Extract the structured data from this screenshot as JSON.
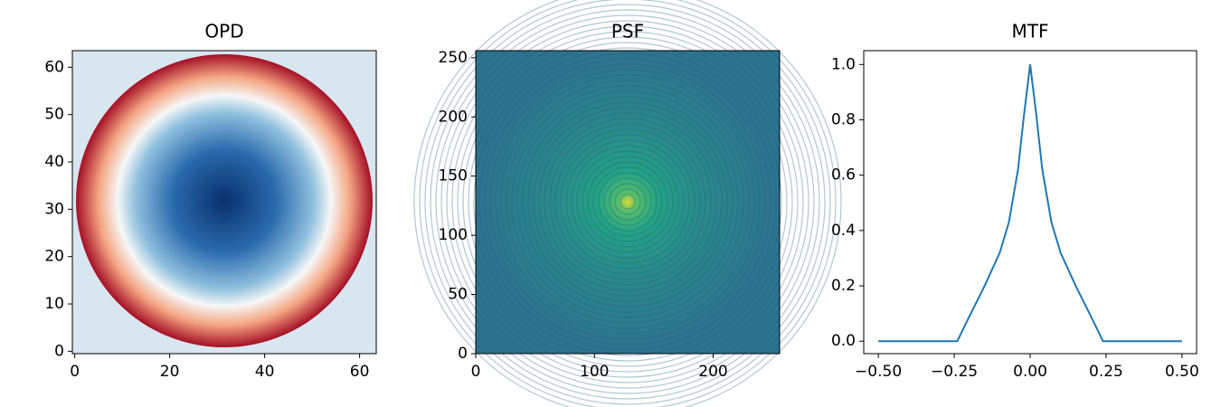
{
  "chart_data": [
    {
      "type": "image",
      "title": "OPD",
      "xlim": [
        -0.5,
        63.5
      ],
      "ylim": [
        -0.5,
        63.5
      ],
      "xticks": [
        0,
        20,
        40,
        60
      ],
      "yticks": [
        0,
        10,
        20,
        30,
        40,
        50,
        60
      ]
    },
    {
      "type": "image",
      "title": "PSF",
      "xlim": [
        0,
        256
      ],
      "ylim": [
        0,
        256
      ],
      "xticks": [
        0,
        100,
        200
      ],
      "yticks": [
        0,
        50,
        100,
        150,
        200,
        250
      ]
    },
    {
      "type": "line",
      "title": "MTF",
      "xlim": [
        -0.548,
        0.548
      ],
      "ylim": [
        -0.045,
        1.05
      ],
      "xticks": [
        {
          "value": -0.5,
          "label": "−0.50"
        },
        {
          "value": -0.25,
          "label": "−0.25"
        },
        {
          "value": 0,
          "label": "0.00"
        },
        {
          "value": 0.25,
          "label": "0.25"
        },
        {
          "value": 0.5,
          "label": "0.50"
        }
      ],
      "yticks": [
        {
          "value": 0,
          "label": "0.0"
        },
        {
          "value": 0.2,
          "label": "0.2"
        },
        {
          "value": 0.4,
          "label": "0.4"
        },
        {
          "value": 0.6,
          "label": "0.6"
        },
        {
          "value": 0.8,
          "label": "0.8"
        },
        {
          "value": 1.0,
          "label": "1.0"
        }
      ],
      "x": [
        -0.5,
        -0.24,
        -0.2,
        -0.15,
        -0.1,
        -0.07,
        -0.04,
        -0.02,
        0,
        0.02,
        0.04,
        0.07,
        0.1,
        0.15,
        0.2,
        0.24,
        0.5
      ],
      "series": [
        {
          "color": "#1f77b4",
          "values": [
            0,
            0,
            0.09,
            0.2,
            0.32,
            0.43,
            0.62,
            0.82,
            1.0,
            0.82,
            0.62,
            0.43,
            0.32,
            0.2,
            0.09,
            0,
            0
          ]
        }
      ]
    }
  ]
}
